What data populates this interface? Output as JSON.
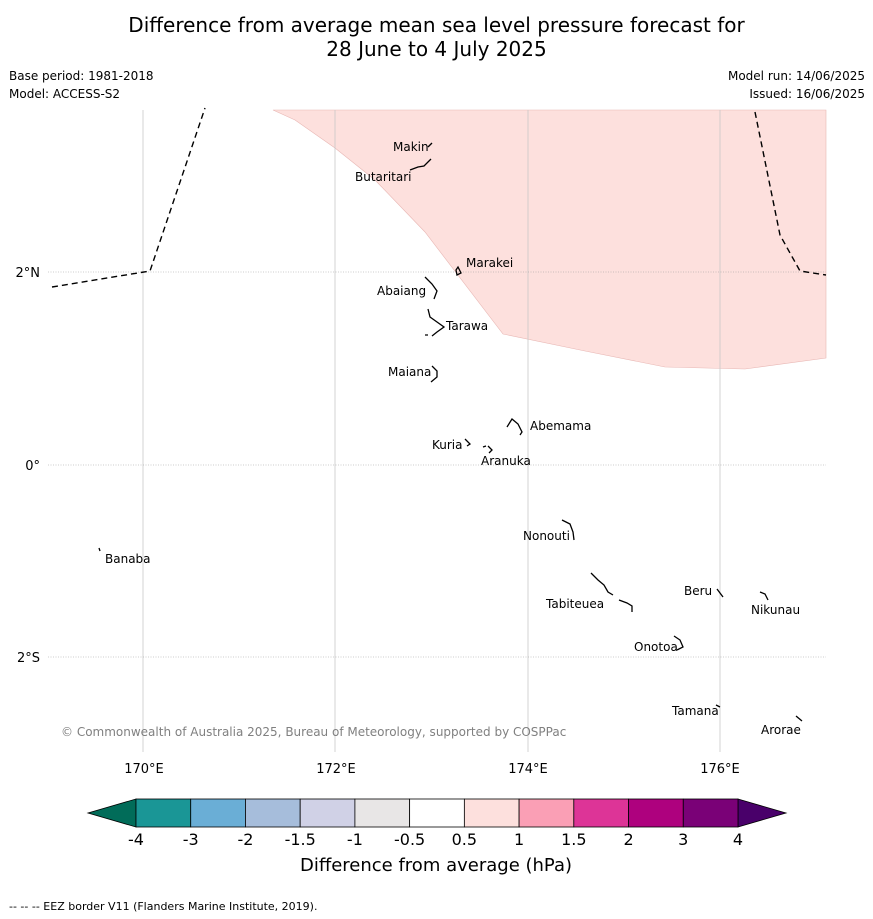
{
  "header": {
    "title_line1": "Difference from average mean sea level pressure forecast for",
    "title_line2": "28 June to 4 July 2025",
    "base_period": "Base period: 1981-2018",
    "model": "Model: ACCESS-S2",
    "model_run": "Model run: 14/06/2025",
    "issued": "Issued: 16/06/2025"
  },
  "map": {
    "lat_labels": [
      "2°N",
      "0°",
      "2°S"
    ],
    "lon_labels": [
      "170°E",
      "172°E",
      "174°E",
      "176°E"
    ],
    "places": [
      {
        "name": "Makin"
      },
      {
        "name": "Butaritari"
      },
      {
        "name": "Marakei"
      },
      {
        "name": "Abaiang"
      },
      {
        "name": "Tarawa"
      },
      {
        "name": "Maiana"
      },
      {
        "name": "Abemama"
      },
      {
        "name": "Kuria"
      },
      {
        "name": "Aranuka"
      },
      {
        "name": "Nonouti"
      },
      {
        "name": "Banaba"
      },
      {
        "name": "Beru"
      },
      {
        "name": "Nikunau"
      },
      {
        "name": "Tabiteuea"
      },
      {
        "name": "Onotoa"
      },
      {
        "name": "Tamana"
      },
      {
        "name": "Arorae"
      }
    ],
    "shaded_anomaly_range_hPa": [
      0.5,
      1
    ],
    "copyright": "© Commonwealth of Australia 2025, Bureau of Meteorology, supported by COSPPac"
  },
  "colorbar": {
    "ticks": [
      "-4",
      "-3",
      "-2",
      "-1.5",
      "-1",
      "-0.5",
      "0.5",
      "1",
      "1.5",
      "2",
      "3",
      "4"
    ],
    "colors": [
      "#1a9696",
      "#6aaed6",
      "#a6bddb",
      "#d0d1e6",
      "#e8e6e6",
      "#ffffff",
      "#fde0dd",
      "#fa9fb5",
      "#dd3497",
      "#ae017e",
      "#7a0177"
    ],
    "extend_low_color": "#016c59",
    "extend_high_color": "#49006a",
    "label": "Difference from average (hPa)"
  },
  "footer": {
    "text": "--  --  -- EEZ border V11 (Flanders Marine Institute, 2019)."
  }
}
